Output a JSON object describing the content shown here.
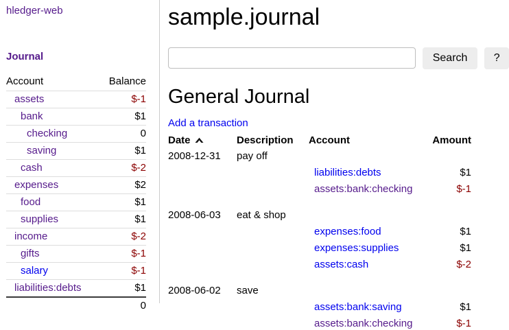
{
  "app": {
    "brand": "hledger-web",
    "nav_journal": "Journal"
  },
  "sidebar": {
    "columns": {
      "account": "Account",
      "balance": "Balance"
    },
    "accounts": [
      {
        "name": "assets",
        "indent": 1,
        "balance": "$-1",
        "negative": true,
        "visited": true
      },
      {
        "name": "bank",
        "indent": 2,
        "balance": "$1",
        "negative": false,
        "visited": true
      },
      {
        "name": "checking",
        "indent": 3,
        "balance": "0",
        "negative": false,
        "visited": true
      },
      {
        "name": "saving",
        "indent": 3,
        "balance": "$1",
        "negative": false,
        "visited": true
      },
      {
        "name": "cash",
        "indent": 2,
        "balance": "$-2",
        "negative": true,
        "visited": true
      },
      {
        "name": "expenses",
        "indent": 1,
        "balance": "$2",
        "negative": false,
        "visited": true
      },
      {
        "name": "food",
        "indent": 2,
        "balance": "$1",
        "negative": false,
        "visited": true
      },
      {
        "name": "supplies",
        "indent": 2,
        "balance": "$1",
        "negative": false,
        "visited": true
      },
      {
        "name": "income",
        "indent": 1,
        "balance": "$-2",
        "negative": true,
        "visited": true
      },
      {
        "name": "gifts",
        "indent": 2,
        "balance": "$-1",
        "negative": true,
        "visited": true
      },
      {
        "name": "salary",
        "indent": 2,
        "balance": "$-1",
        "negative": true,
        "visited": false
      },
      {
        "name": "liabilities:debts",
        "indent": 1,
        "balance": "$1",
        "negative": false,
        "visited": true
      }
    ],
    "total": "0"
  },
  "header": {
    "title": "sample.journal"
  },
  "search": {
    "value": "",
    "placeholder": "",
    "button_label": "Search",
    "help_label": "?"
  },
  "journal": {
    "heading": "General Journal",
    "add_transaction_label": "Add a transaction",
    "columns": {
      "date": "Date",
      "description": "Description",
      "account": "Account",
      "amount": "Amount",
      "sort_icon": "caret-up"
    },
    "transactions": [
      {
        "date": "2008-12-31",
        "description": "pay off",
        "postings": [
          {
            "account": "liabilities:debts",
            "amount": "$1",
            "negative": false,
            "visited": false
          },
          {
            "account": "assets:bank:checking",
            "amount": "$-1",
            "negative": true,
            "visited": true
          }
        ]
      },
      {
        "date": "2008-06-03",
        "description": "eat & shop",
        "postings": [
          {
            "account": "expenses:food",
            "amount": "$1",
            "negative": false,
            "visited": false
          },
          {
            "account": "expenses:supplies",
            "amount": "$1",
            "negative": false,
            "visited": false
          },
          {
            "account": "assets:cash",
            "amount": "$-2",
            "negative": true,
            "visited": false
          }
        ]
      },
      {
        "date": "2008-06-02",
        "description": "save",
        "postings": [
          {
            "account": "assets:bank:saving",
            "amount": "$1",
            "negative": false,
            "visited": false
          },
          {
            "account": "assets:bank:checking",
            "amount": "$-1",
            "negative": true,
            "visited": true
          }
        ]
      }
    ]
  },
  "colors": {
    "link_blue": "#0000ee",
    "link_visited": "#551a8b",
    "negative_amount": "#8b0000"
  }
}
